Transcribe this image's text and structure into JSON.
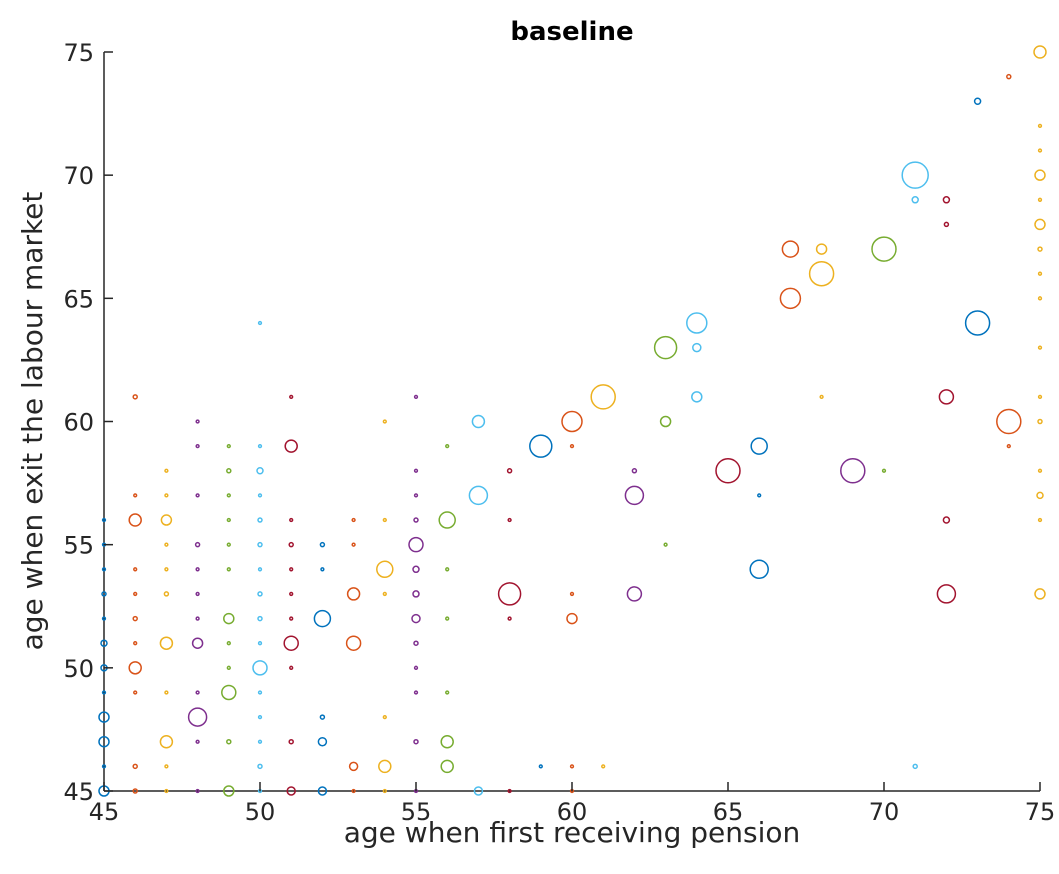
{
  "chart_data": {
    "type": "scatter",
    "title": "baseline",
    "xlabel": "age when first receiving pension",
    "ylabel": "age when exit the labour market",
    "xlim": [
      45,
      75
    ],
    "ylim": [
      45,
      75
    ],
    "xticks": [
      "45",
      "50",
      "55",
      "60",
      "65",
      "70",
      "75"
    ],
    "yticks": [
      "45",
      "50",
      "55",
      "60",
      "65",
      "70",
      "75"
    ],
    "grid": false,
    "colors": [
      "#0072BD",
      "#D95319",
      "#EDB120",
      "#7E2F8E",
      "#77AC30",
      "#4DBEEE",
      "#A2142F"
    ],
    "points": [
      {
        "x": 45,
        "y": 45,
        "s": 5,
        "c": 0
      },
      {
        "x": 45,
        "y": 46,
        "s": 1,
        "c": 0
      },
      {
        "x": 45,
        "y": 47,
        "s": 5,
        "c": 0
      },
      {
        "x": 45,
        "y": 48,
        "s": 5,
        "c": 0
      },
      {
        "x": 45,
        "y": 49,
        "s": 1,
        "c": 0
      },
      {
        "x": 45,
        "y": 50,
        "s": 3,
        "c": 0
      },
      {
        "x": 45,
        "y": 51,
        "s": 3,
        "c": 0
      },
      {
        "x": 45,
        "y": 52,
        "s": 1,
        "c": 0
      },
      {
        "x": 45,
        "y": 53,
        "s": 2,
        "c": 0
      },
      {
        "x": 45,
        "y": 54,
        "s": 1,
        "c": 0
      },
      {
        "x": 45,
        "y": 55,
        "s": 1,
        "c": 0
      },
      {
        "x": 45,
        "y": 56,
        "s": 1,
        "c": 0
      },
      {
        "x": 46,
        "y": 45,
        "s": 2,
        "c": 1
      },
      {
        "x": 46,
        "y": 46,
        "s": 2,
        "c": 1
      },
      {
        "x": 46,
        "y": 49,
        "s": 1,
        "c": 1
      },
      {
        "x": 46,
        "y": 50,
        "s": 6,
        "c": 1
      },
      {
        "x": 46,
        "y": 51,
        "s": 1,
        "c": 1
      },
      {
        "x": 46,
        "y": 52,
        "s": 2,
        "c": 1
      },
      {
        "x": 46,
        "y": 53,
        "s": 1,
        "c": 1
      },
      {
        "x": 46,
        "y": 54,
        "s": 1,
        "c": 1
      },
      {
        "x": 46,
        "y": 56,
        "s": 6,
        "c": 1
      },
      {
        "x": 46,
        "y": 57,
        "s": 1,
        "c": 1
      },
      {
        "x": 46,
        "y": 61,
        "s": 2,
        "c": 1
      },
      {
        "x": 47,
        "y": 45,
        "s": 1,
        "c": 2
      },
      {
        "x": 47,
        "y": 46,
        "s": 1,
        "c": 2
      },
      {
        "x": 47,
        "y": 47,
        "s": 6,
        "c": 2
      },
      {
        "x": 47,
        "y": 49,
        "s": 1,
        "c": 2
      },
      {
        "x": 47,
        "y": 51,
        "s": 6,
        "c": 2
      },
      {
        "x": 47,
        "y": 53,
        "s": 2,
        "c": 2
      },
      {
        "x": 47,
        "y": 54,
        "s": 1,
        "c": 2
      },
      {
        "x": 47,
        "y": 55,
        "s": 1,
        "c": 2
      },
      {
        "x": 47,
        "y": 56,
        "s": 5,
        "c": 2
      },
      {
        "x": 47,
        "y": 57,
        "s": 1,
        "c": 2
      },
      {
        "x": 47,
        "y": 58,
        "s": 1,
        "c": 2
      },
      {
        "x": 48,
        "y": 45,
        "s": 1,
        "c": 3
      },
      {
        "x": 48,
        "y": 47,
        "s": 1,
        "c": 3
      },
      {
        "x": 48,
        "y": 48,
        "s": 9,
        "c": 3
      },
      {
        "x": 48,
        "y": 49,
        "s": 1,
        "c": 3
      },
      {
        "x": 48,
        "y": 51,
        "s": 5,
        "c": 3
      },
      {
        "x": 48,
        "y": 52,
        "s": 1,
        "c": 3
      },
      {
        "x": 48,
        "y": 53,
        "s": 1,
        "c": 3
      },
      {
        "x": 48,
        "y": 54,
        "s": 1,
        "c": 3
      },
      {
        "x": 48,
        "y": 55,
        "s": 2,
        "c": 3
      },
      {
        "x": 48,
        "y": 57,
        "s": 1,
        "c": 3
      },
      {
        "x": 48,
        "y": 59,
        "s": 1,
        "c": 3
      },
      {
        "x": 48,
        "y": 60,
        "s": 1,
        "c": 3
      },
      {
        "x": 49,
        "y": 45,
        "s": 5,
        "c": 4
      },
      {
        "x": 49,
        "y": 47,
        "s": 2,
        "c": 4
      },
      {
        "x": 49,
        "y": 49,
        "s": 7,
        "c": 4
      },
      {
        "x": 49,
        "y": 50,
        "s": 1,
        "c": 4
      },
      {
        "x": 49,
        "y": 51,
        "s": 1,
        "c": 4
      },
      {
        "x": 49,
        "y": 52,
        "s": 5,
        "c": 4
      },
      {
        "x": 49,
        "y": 54,
        "s": 1,
        "c": 4
      },
      {
        "x": 49,
        "y": 55,
        "s": 1,
        "c": 4
      },
      {
        "x": 49,
        "y": 56,
        "s": 1,
        "c": 4
      },
      {
        "x": 49,
        "y": 57,
        "s": 1,
        "c": 4
      },
      {
        "x": 49,
        "y": 58,
        "s": 2,
        "c": 4
      },
      {
        "x": 49,
        "y": 59,
        "s": 1,
        "c": 4
      },
      {
        "x": 50,
        "y": 45,
        "s": 1,
        "c": 5
      },
      {
        "x": 50,
        "y": 46,
        "s": 2,
        "c": 5
      },
      {
        "x": 50,
        "y": 47,
        "s": 1,
        "c": 5
      },
      {
        "x": 50,
        "y": 48,
        "s": 1,
        "c": 5
      },
      {
        "x": 50,
        "y": 49,
        "s": 1,
        "c": 5
      },
      {
        "x": 50,
        "y": 50,
        "s": 7,
        "c": 5
      },
      {
        "x": 50,
        "y": 51,
        "s": 1,
        "c": 5
      },
      {
        "x": 50,
        "y": 52,
        "s": 2,
        "c": 5
      },
      {
        "x": 50,
        "y": 53,
        "s": 2,
        "c": 5
      },
      {
        "x": 50,
        "y": 54,
        "s": 1,
        "c": 5
      },
      {
        "x": 50,
        "y": 55,
        "s": 2,
        "c": 5
      },
      {
        "x": 50,
        "y": 56,
        "s": 2,
        "c": 5
      },
      {
        "x": 50,
        "y": 57,
        "s": 1,
        "c": 5
      },
      {
        "x": 50,
        "y": 58,
        "s": 3,
        "c": 5
      },
      {
        "x": 50,
        "y": 59,
        "s": 1,
        "c": 5
      },
      {
        "x": 50,
        "y": 64,
        "s": 1,
        "c": 5
      },
      {
        "x": 51,
        "y": 45,
        "s": 4,
        "c": 6
      },
      {
        "x": 51,
        "y": 47,
        "s": 2,
        "c": 6
      },
      {
        "x": 51,
        "y": 50,
        "s": 1,
        "c": 6
      },
      {
        "x": 51,
        "y": 51,
        "s": 7,
        "c": 6
      },
      {
        "x": 51,
        "y": 52,
        "s": 1,
        "c": 6
      },
      {
        "x": 51,
        "y": 53,
        "s": 1,
        "c": 6
      },
      {
        "x": 51,
        "y": 54,
        "s": 1,
        "c": 6
      },
      {
        "x": 51,
        "y": 55,
        "s": 2,
        "c": 6
      },
      {
        "x": 51,
        "y": 56,
        "s": 1,
        "c": 6
      },
      {
        "x": 51,
        "y": 59,
        "s": 6,
        "c": 6
      },
      {
        "x": 51,
        "y": 61,
        "s": 1,
        "c": 6
      },
      {
        "x": 52,
        "y": 45,
        "s": 4,
        "c": 0
      },
      {
        "x": 52,
        "y": 47,
        "s": 4,
        "c": 0
      },
      {
        "x": 52,
        "y": 48,
        "s": 2,
        "c": 0
      },
      {
        "x": 52,
        "y": 52,
        "s": 8,
        "c": 0
      },
      {
        "x": 52,
        "y": 54,
        "s": 1,
        "c": 0
      },
      {
        "x": 52,
        "y": 55,
        "s": 2,
        "c": 0
      },
      {
        "x": 53,
        "y": 45,
        "s": 1,
        "c": 1
      },
      {
        "x": 53,
        "y": 46,
        "s": 4,
        "c": 1
      },
      {
        "x": 53,
        "y": 51,
        "s": 7,
        "c": 1
      },
      {
        "x": 53,
        "y": 53,
        "s": 6,
        "c": 1
      },
      {
        "x": 53,
        "y": 55,
        "s": 1,
        "c": 1
      },
      {
        "x": 53,
        "y": 56,
        "s": 1,
        "c": 1
      },
      {
        "x": 54,
        "y": 45,
        "s": 1,
        "c": 2
      },
      {
        "x": 54,
        "y": 46,
        "s": 6,
        "c": 2
      },
      {
        "x": 54,
        "y": 48,
        "s": 1,
        "c": 2
      },
      {
        "x": 54,
        "y": 53,
        "s": 1,
        "c": 2
      },
      {
        "x": 54,
        "y": 54,
        "s": 8,
        "c": 2
      },
      {
        "x": 54,
        "y": 56,
        "s": 1,
        "c": 2
      },
      {
        "x": 54,
        "y": 60,
        "s": 1,
        "c": 2
      },
      {
        "x": 55,
        "y": 45,
        "s": 1,
        "c": 3
      },
      {
        "x": 55,
        "y": 47,
        "s": 2,
        "c": 3
      },
      {
        "x": 55,
        "y": 49,
        "s": 1,
        "c": 3
      },
      {
        "x": 55,
        "y": 50,
        "s": 1,
        "c": 3
      },
      {
        "x": 55,
        "y": 51,
        "s": 2,
        "c": 3
      },
      {
        "x": 55,
        "y": 52,
        "s": 4,
        "c": 3
      },
      {
        "x": 55,
        "y": 53,
        "s": 3,
        "c": 3
      },
      {
        "x": 55,
        "y": 54,
        "s": 3,
        "c": 3
      },
      {
        "x": 55,
        "y": 55,
        "s": 7,
        "c": 3
      },
      {
        "x": 55,
        "y": 56,
        "s": 2,
        "c": 3
      },
      {
        "x": 55,
        "y": 57,
        "s": 1,
        "c": 3
      },
      {
        "x": 55,
        "y": 58,
        "s": 1,
        "c": 3
      },
      {
        "x": 55,
        "y": 61,
        "s": 1,
        "c": 3
      },
      {
        "x": 56,
        "y": 46,
        "s": 6,
        "c": 4
      },
      {
        "x": 56,
        "y": 47,
        "s": 6,
        "c": 4
      },
      {
        "x": 56,
        "y": 49,
        "s": 1,
        "c": 4
      },
      {
        "x": 56,
        "y": 52,
        "s": 1,
        "c": 4
      },
      {
        "x": 56,
        "y": 54,
        "s": 1,
        "c": 4
      },
      {
        "x": 56,
        "y": 56,
        "s": 8,
        "c": 4
      },
      {
        "x": 56,
        "y": 59,
        "s": 1,
        "c": 4
      },
      {
        "x": 57,
        "y": 45,
        "s": 4,
        "c": 5
      },
      {
        "x": 57,
        "y": 57,
        "s": 9,
        "c": 5
      },
      {
        "x": 57,
        "y": 60,
        "s": 6,
        "c": 5
      },
      {
        "x": 58,
        "y": 45,
        "s": 1,
        "c": 6
      },
      {
        "x": 58,
        "y": 52,
        "s": 1,
        "c": 6
      },
      {
        "x": 58,
        "y": 53,
        "s": 11,
        "c": 6
      },
      {
        "x": 58,
        "y": 56,
        "s": 1,
        "c": 6
      },
      {
        "x": 58,
        "y": 58,
        "s": 2,
        "c": 6
      },
      {
        "x": 59,
        "y": 46,
        "s": 1,
        "c": 0
      },
      {
        "x": 59,
        "y": 59,
        "s": 11,
        "c": 0
      },
      {
        "x": 60,
        "y": 45,
        "s": 1,
        "c": 1
      },
      {
        "x": 60,
        "y": 46,
        "s": 1,
        "c": 1
      },
      {
        "x": 60,
        "y": 52,
        "s": 5,
        "c": 1
      },
      {
        "x": 60,
        "y": 53,
        "s": 1,
        "c": 1
      },
      {
        "x": 60,
        "y": 59,
        "s": 1,
        "c": 1
      },
      {
        "x": 60,
        "y": 60,
        "s": 10,
        "c": 1
      },
      {
        "x": 61,
        "y": 46,
        "s": 1,
        "c": 2
      },
      {
        "x": 61,
        "y": 61,
        "s": 12,
        "c": 2
      },
      {
        "x": 62,
        "y": 53,
        "s": 7,
        "c": 3
      },
      {
        "x": 62,
        "y": 57,
        "s": 9,
        "c": 3
      },
      {
        "x": 62,
        "y": 58,
        "s": 2,
        "c": 3
      },
      {
        "x": 63,
        "y": 55,
        "s": 1,
        "c": 4
      },
      {
        "x": 63,
        "y": 60,
        "s": 5,
        "c": 4
      },
      {
        "x": 63,
        "y": 63,
        "s": 11,
        "c": 4
      },
      {
        "x": 64,
        "y": 61,
        "s": 5,
        "c": 5
      },
      {
        "x": 64,
        "y": 63,
        "s": 4,
        "c": 5
      },
      {
        "x": 64,
        "y": 64,
        "s": 10,
        "c": 5
      },
      {
        "x": 65,
        "y": 58,
        "s": 12,
        "c": 6
      },
      {
        "x": 66,
        "y": 54,
        "s": 9,
        "c": 0
      },
      {
        "x": 66,
        "y": 57,
        "s": 1,
        "c": 0
      },
      {
        "x": 66,
        "y": 59,
        "s": 8,
        "c": 0
      },
      {
        "x": 67,
        "y": 65,
        "s": 10,
        "c": 1
      },
      {
        "x": 67,
        "y": 67,
        "s": 8,
        "c": 1
      },
      {
        "x": 68,
        "y": 61,
        "s": 1,
        "c": 2
      },
      {
        "x": 68,
        "y": 66,
        "s": 12,
        "c": 2
      },
      {
        "x": 68,
        "y": 67,
        "s": 5,
        "c": 2
      },
      {
        "x": 69,
        "y": 58,
        "s": 12,
        "c": 3
      },
      {
        "x": 70,
        "y": 58,
        "s": 1,
        "c": 4
      },
      {
        "x": 70,
        "y": 67,
        "s": 12,
        "c": 4
      },
      {
        "x": 71,
        "y": 46,
        "s": 2,
        "c": 5
      },
      {
        "x": 71,
        "y": 69,
        "s": 3,
        "c": 5
      },
      {
        "x": 71,
        "y": 70,
        "s": 13,
        "c": 5
      },
      {
        "x": 72,
        "y": 53,
        "s": 9,
        "c": 6
      },
      {
        "x": 72,
        "y": 56,
        "s": 3,
        "c": 6
      },
      {
        "x": 72,
        "y": 61,
        "s": 7,
        "c": 6
      },
      {
        "x": 72,
        "y": 68,
        "s": 2,
        "c": 6
      },
      {
        "x": 72,
        "y": 69,
        "s": 3,
        "c": 6
      },
      {
        "x": 73,
        "y": 64,
        "s": 12,
        "c": 0
      },
      {
        "x": 73,
        "y": 73,
        "s": 3,
        "c": 0
      },
      {
        "x": 74,
        "y": 59,
        "s": 1,
        "c": 1
      },
      {
        "x": 74,
        "y": 60,
        "s": 12,
        "c": 1
      },
      {
        "x": 74,
        "y": 74,
        "s": 2,
        "c": 1
      },
      {
        "x": 75,
        "y": 53,
        "s": 5,
        "c": 2
      },
      {
        "x": 75,
        "y": 56,
        "s": 1,
        "c": 2
      },
      {
        "x": 75,
        "y": 57,
        "s": 3,
        "c": 2
      },
      {
        "x": 75,
        "y": 58,
        "s": 1,
        "c": 2
      },
      {
        "x": 75,
        "y": 60,
        "s": 2,
        "c": 2
      },
      {
        "x": 75,
        "y": 61,
        "s": 1,
        "c": 2
      },
      {
        "x": 75,
        "y": 63,
        "s": 1,
        "c": 2
      },
      {
        "x": 75,
        "y": 65,
        "s": 1,
        "c": 2
      },
      {
        "x": 75,
        "y": 66,
        "s": 1,
        "c": 2
      },
      {
        "x": 75,
        "y": 67,
        "s": 2,
        "c": 2
      },
      {
        "x": 75,
        "y": 68,
        "s": 5,
        "c": 2
      },
      {
        "x": 75,
        "y": 69,
        "s": 1,
        "c": 2
      },
      {
        "x": 75,
        "y": 70,
        "s": 5,
        "c": 2
      },
      {
        "x": 75,
        "y": 71,
        "s": 1,
        "c": 2
      },
      {
        "x": 75,
        "y": 72,
        "s": 1,
        "c": 2
      },
      {
        "x": 75,
        "y": 75,
        "s": 6,
        "c": 2
      }
    ]
  }
}
